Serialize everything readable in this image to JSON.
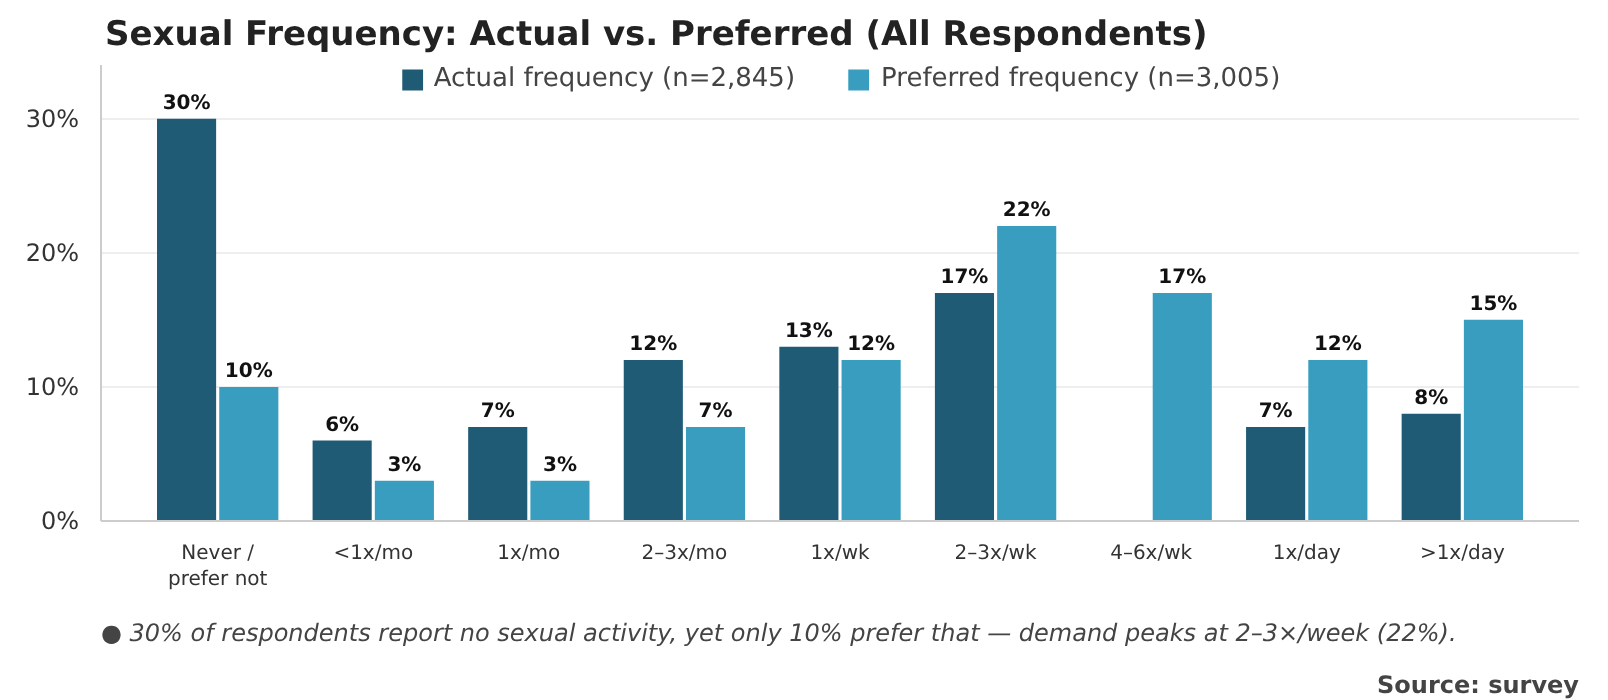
{
  "chart_data": {
    "type": "bar",
    "title": "Sexual Frequency: Actual vs. Preferred (All Respondents)",
    "categories": [
      "Never /\nprefer not",
      "<1x/mo",
      "1x/mo",
      "2–3x/mo",
      "1x/wk",
      "2–3x/wk",
      "4–6x/wk",
      "1x/day",
      ">1x/day"
    ],
    "series": [
      {
        "name": "Actual frequency (n=2,845)",
        "color": "#1f5b74",
        "values": [
          30,
          6,
          7,
          12,
          13,
          17,
          null,
          7,
          8
        ],
        "value_labels": [
          "30%",
          "6%",
          "7%",
          "12%",
          "13%",
          "17%",
          null,
          "7%",
          "8%"
        ]
      },
      {
        "name": "Preferred frequency (n=3,005)",
        "color": "#399dc0",
        "values": [
          10,
          3,
          3,
          7,
          12,
          22,
          17,
          12,
          15
        ],
        "value_labels": [
          "10%",
          "3%",
          "3%",
          "7%",
          "12%",
          "22%",
          "17%",
          "12%",
          "15%"
        ]
      }
    ],
    "ylim": [
      0,
      34
    ],
    "yticks": [
      {
        "value": 0,
        "label": "0%"
      },
      {
        "value": 10,
        "label": "10%"
      },
      {
        "value": 20,
        "label": "20%"
      },
      {
        "value": 30,
        "label": "30%"
      }
    ],
    "grid": "y",
    "legend": "top",
    "annotations": [
      "● 30% of respondents report no sexual activity, yet only 10% prefer that — demand peaks at 2–3×/week (22%).",
      "Source: survey"
    ]
  }
}
